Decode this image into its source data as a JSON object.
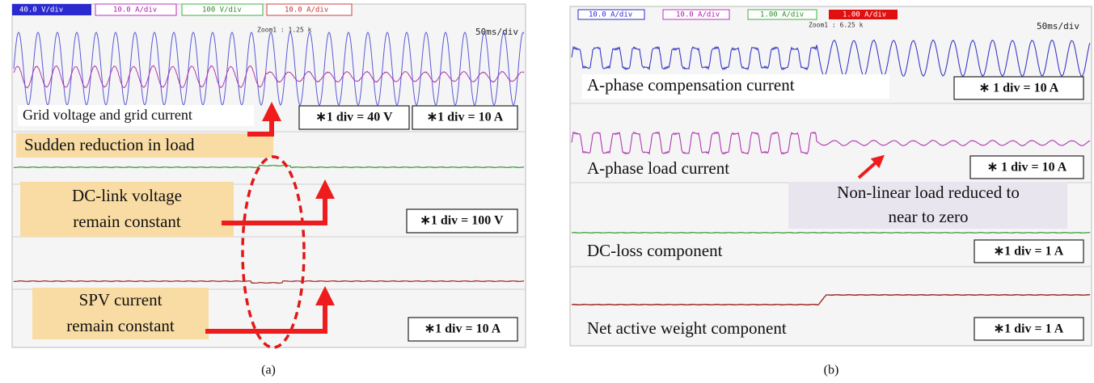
{
  "panels": [
    {
      "caption": "(a)",
      "channels": [
        "40.0 V/div",
        "10.0 A/div",
        "100 V/div",
        "10.0 A/div"
      ],
      "zoom": "Zoom1 : 1.25 k",
      "timebase": "50ms/div",
      "trace_1_label": "Grid voltage and grid current",
      "trace_1_scale_a": "∗1 div = 40 V",
      "trace_1_scale_b": "∗1 div = 10 A",
      "event": "Sudden reduction in load",
      "trace_2_note": [
        "DC-link voltage",
        "remain constant"
      ],
      "trace_2_scale": "∗1 div = 100 V",
      "trace_3_note": [
        "SPV current",
        "remain constant"
      ],
      "trace_3_scale": "∗1 div = 10 A"
    },
    {
      "caption": "(b)",
      "channels": [
        "10.0 A/div",
        "10.0 A/div",
        "1.00 A/div",
        "1.00 A/div"
      ],
      "zoom": "Zoom1 : 6.25 k",
      "timebase": "50ms/div",
      "trace_1_label": "A-phase compensation current",
      "trace_1_scale": "∗ 1 div = 10 A",
      "trace_2_label": "A-phase load current",
      "trace_2_scale": "∗ 1 div = 10 A",
      "event": [
        "Non-linear load reduced to",
        "near to zero"
      ],
      "trace_3_label": "DC-loss component",
      "trace_3_scale": "∗1 div = 1 A",
      "trace_4_label": "Net active weight component",
      "trace_4_scale": "∗1 div = 1 A"
    }
  ]
}
